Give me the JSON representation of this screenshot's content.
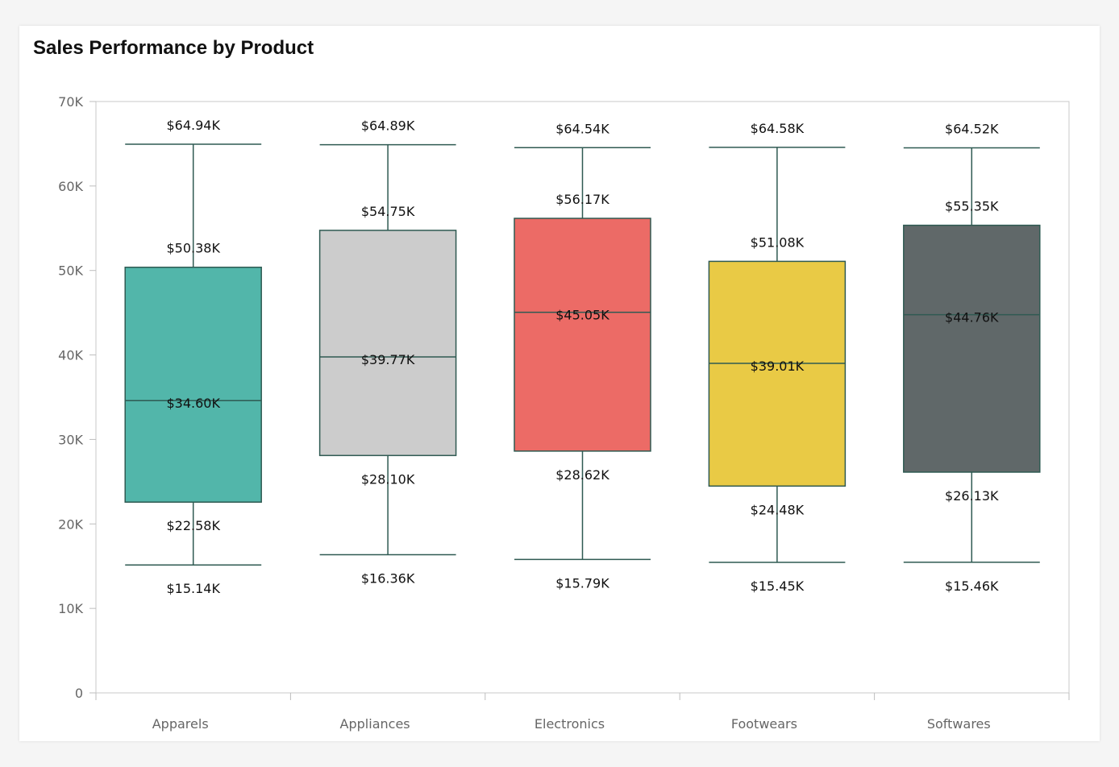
{
  "chart_data": {
    "type": "boxplot",
    "title": "Sales Performance by Product",
    "categories": [
      "Apparels",
      "Appliances",
      "Electronics",
      "Footwears",
      "Softwares"
    ],
    "series": [
      {
        "category": "Apparels",
        "min": 15.14,
        "q1": 22.58,
        "median": 34.6,
        "q3": 50.38,
        "max": 64.94,
        "labels": {
          "min": "$15.14K",
          "q1": "$22.58K",
          "median": "$34.60K",
          "q3": "$50.38K",
          "max": "$64.94K"
        },
        "color": "#52b6aa"
      },
      {
        "category": "Appliances",
        "min": 16.36,
        "q1": 28.1,
        "median": 39.77,
        "q3": 54.75,
        "max": 64.89,
        "labels": {
          "min": "$16.36K",
          "q1": "$28.10K",
          "median": "$39.77K",
          "q3": "$54.75K",
          "max": "$64.89K"
        },
        "color": "#cccccc"
      },
      {
        "category": "Electronics",
        "min": 15.79,
        "q1": 28.62,
        "median": 45.05,
        "q3": 56.17,
        "max": 64.54,
        "labels": {
          "min": "$15.79K",
          "q1": "$28.62K",
          "median": "$45.05K",
          "q3": "$56.17K",
          "max": "$64.54K"
        },
        "color": "#ec6b66"
      },
      {
        "category": "Footwears",
        "min": 15.45,
        "q1": 24.48,
        "median": 39.01,
        "q3": 51.08,
        "max": 64.58,
        "labels": {
          "min": "$15.45K",
          "q1": "$24.48K",
          "median": "$39.01K",
          "q3": "$51.08K",
          "max": "$64.58K"
        },
        "color": "#e9ca45"
      },
      {
        "category": "Softwares",
        "min": 15.46,
        "q1": 26.13,
        "median": 44.76,
        "q3": 55.35,
        "max": 64.52,
        "labels": {
          "min": "$15.46K",
          "q1": "$26.13K",
          "median": "$44.76K",
          "q3": "$55.35K",
          "max": "$64.52K"
        },
        "color": "#606869"
      }
    ],
    "unit": "thousands USD",
    "ylim": [
      0,
      70
    ],
    "yticks": [
      "0",
      "10K",
      "20K",
      "30K",
      "40K",
      "50K",
      "60K",
      "70K"
    ],
    "grid": false,
    "stroke_color": "#2f5a52"
  }
}
